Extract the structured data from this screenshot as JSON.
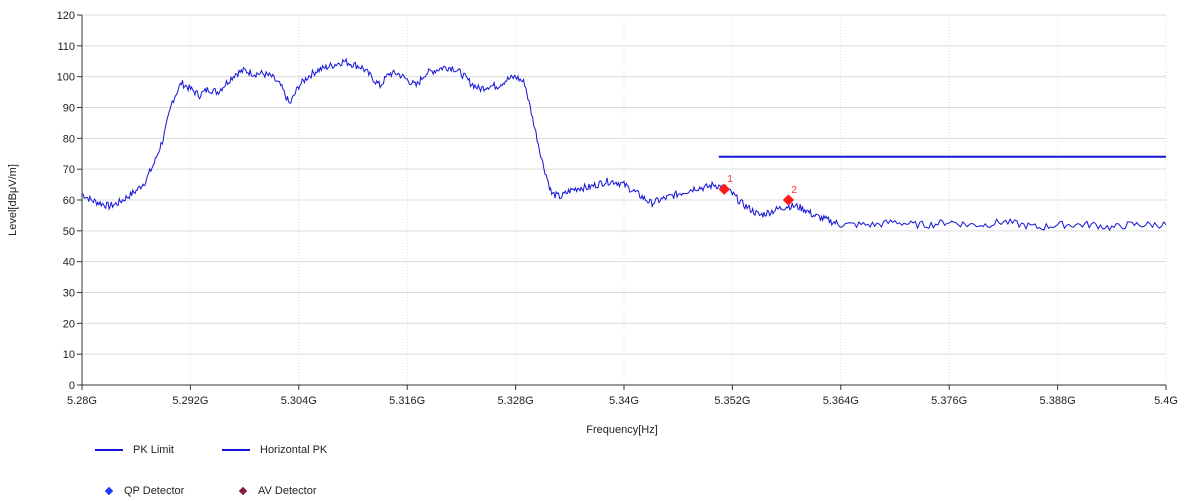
{
  "chart_data": {
    "type": "line",
    "xlabel": "Frequency[Hz]",
    "ylabel": "Level[dBμV/m]",
    "xlim": [
      5.28,
      5.4
    ],
    "ylim": [
      0,
      120
    ],
    "x_ticks": [
      5.28,
      5.292,
      5.304,
      5.316,
      5.328,
      5.34,
      5.352,
      5.364,
      5.376,
      5.388,
      5.4
    ],
    "x_tick_labels": [
      "5.28G",
      "5.292G",
      "5.304G",
      "5.316G",
      "5.328G",
      "5.34G",
      "5.352G",
      "5.364G",
      "5.376G",
      "5.388G",
      "5.4G"
    ],
    "y_ticks": [
      0,
      10,
      20,
      30,
      40,
      50,
      60,
      70,
      80,
      90,
      100,
      110,
      120
    ],
    "grid": true,
    "colors": {
      "trace": "#1414d8",
      "limit": "#1414d8",
      "marker": "#ff1a1a",
      "qp": "#1a3cff",
      "av": "#8b1a3a"
    },
    "series": [
      {
        "name": "PK Limit",
        "x": [
          5.3505,
          5.4
        ],
        "values": [
          74,
          74
        ]
      },
      {
        "name": "Horizontal PK",
        "x": [
          5.28,
          5.281,
          5.282,
          5.283,
          5.284,
          5.285,
          5.286,
          5.287,
          5.288,
          5.289,
          5.29,
          5.291,
          5.292,
          5.293,
          5.294,
          5.295,
          5.296,
          5.297,
          5.298,
          5.299,
          5.3,
          5.301,
          5.302,
          5.303,
          5.304,
          5.305,
          5.306,
          5.307,
          5.308,
          5.309,
          5.31,
          5.311,
          5.312,
          5.313,
          5.314,
          5.315,
          5.316,
          5.317,
          5.318,
          5.319,
          5.32,
          5.321,
          5.322,
          5.323,
          5.324,
          5.325,
          5.326,
          5.327,
          5.328,
          5.329,
          5.33,
          5.331,
          5.332,
          5.333,
          5.334,
          5.335,
          5.336,
          5.337,
          5.338,
          5.339,
          5.34,
          5.341,
          5.342,
          5.343,
          5.344,
          5.345,
          5.346,
          5.347,
          5.348,
          5.349,
          5.35,
          5.351,
          5.352,
          5.353,
          5.354,
          5.355,
          5.356,
          5.357,
          5.358,
          5.359,
          5.36,
          5.361,
          5.362,
          5.363,
          5.364,
          5.366,
          5.368,
          5.37,
          5.372,
          5.374,
          5.376,
          5.378,
          5.38,
          5.382,
          5.384,
          5.386,
          5.388,
          5.39,
          5.392,
          5.394,
          5.396,
          5.398,
          5.4
        ],
        "values": [
          62,
          60,
          59,
          58,
          59,
          61,
          63,
          66,
          72,
          80,
          92,
          98,
          96,
          94,
          96,
          95,
          98,
          101,
          102,
          101,
          101,
          100,
          97,
          91,
          97,
          100,
          102,
          103,
          104,
          105,
          104,
          103,
          100,
          97,
          101,
          101,
          99,
          97,
          101,
          102,
          103,
          103,
          101,
          98,
          96,
          97,
          97,
          99,
          100,
          98,
          85,
          72,
          62,
          61,
          63,
          64,
          64,
          65,
          66,
          66,
          65,
          63,
          61,
          59,
          60,
          61,
          62,
          63,
          64,
          64,
          65,
          64,
          62,
          59,
          57,
          55,
          56,
          57,
          58,
          58,
          57,
          55,
          54,
          53,
          52,
          52,
          52,
          53,
          52,
          52,
          53,
          52,
          52,
          53,
          52,
          51,
          52,
          52,
          52,
          51,
          52,
          52,
          52
        ]
      }
    ],
    "markers": [
      {
        "label": "1",
        "x": 5.3511,
        "y": 63.5
      },
      {
        "label": "2",
        "x": 5.3582,
        "y": 60
      }
    ],
    "legend": [
      {
        "kind": "line",
        "label": "PK Limit"
      },
      {
        "kind": "line",
        "label": "Horizontal PK"
      },
      {
        "kind": "diamond",
        "label": "QP Detector"
      },
      {
        "kind": "diamond",
        "label": "AV Detector"
      }
    ]
  }
}
